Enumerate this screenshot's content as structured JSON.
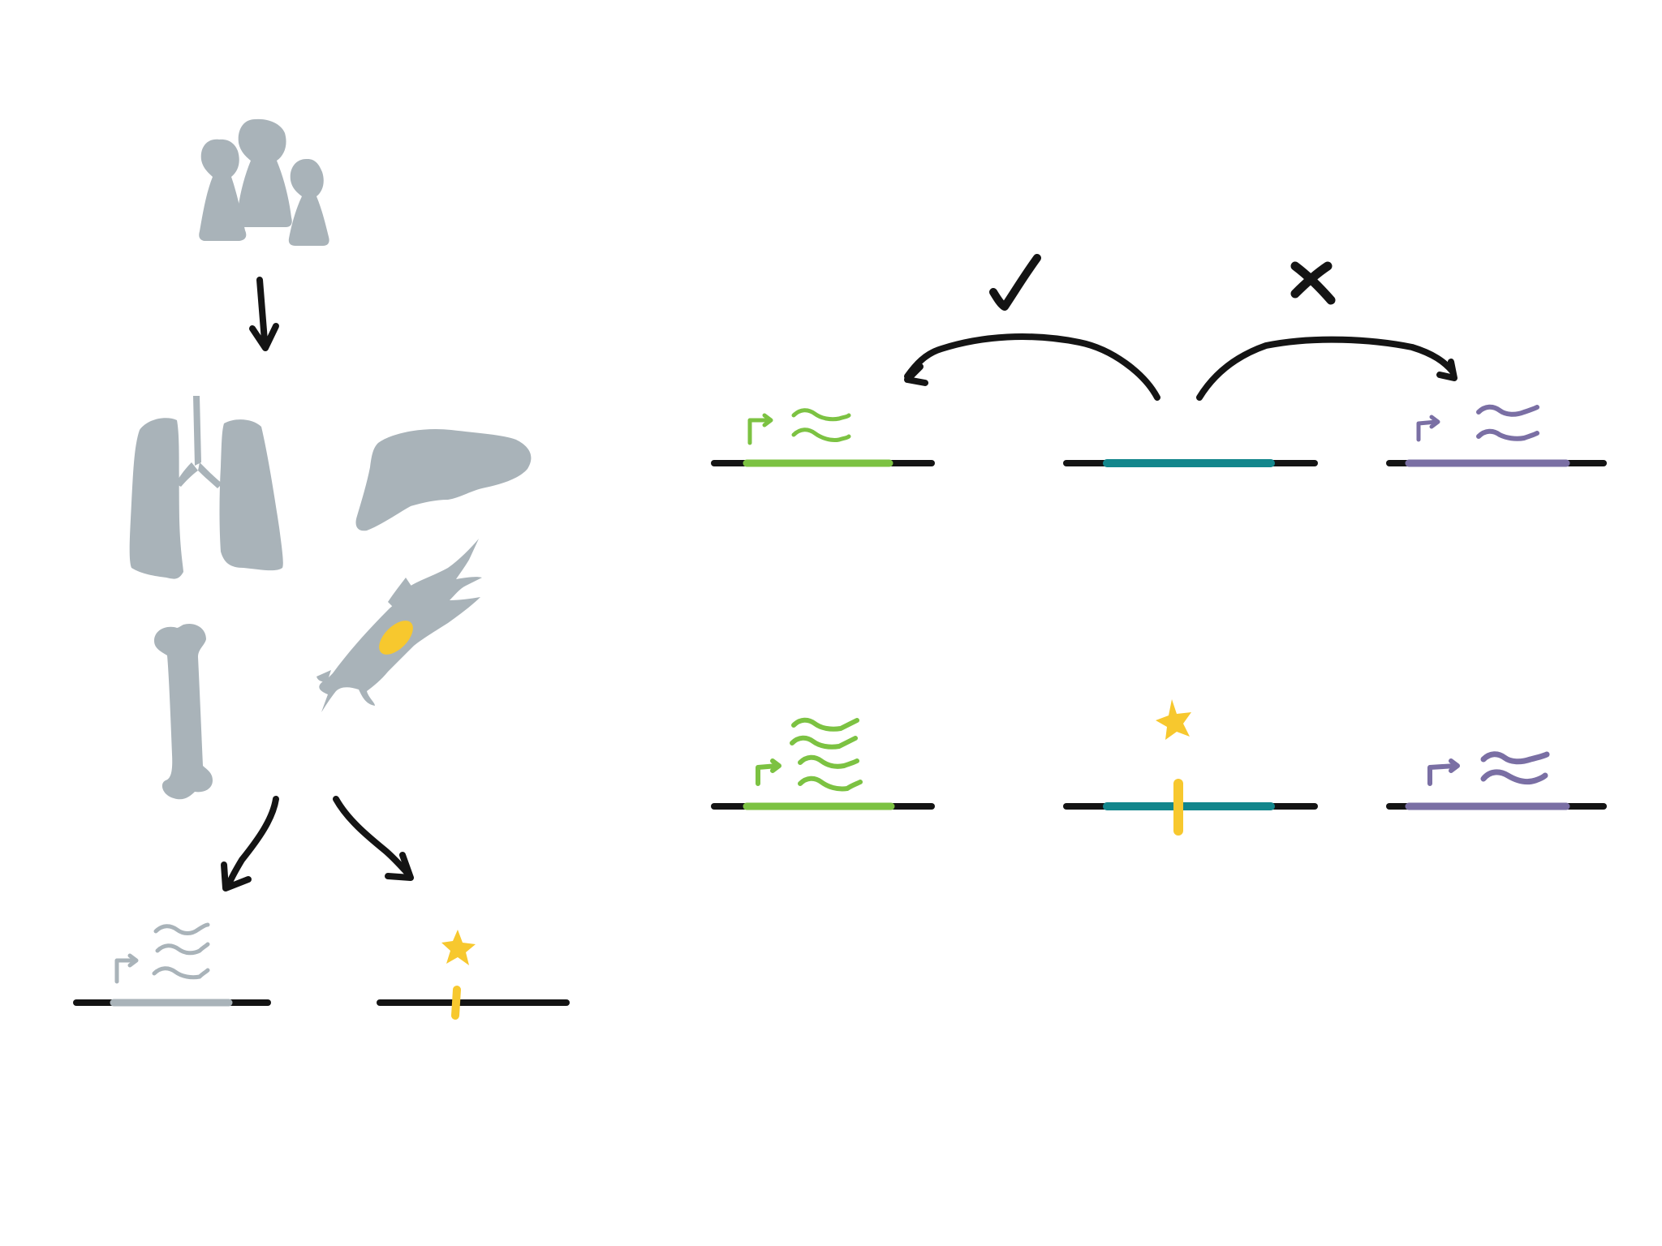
{
  "colors": {
    "ink": "#141414",
    "tissue_gray": "#a9b3b9",
    "green": "#7cc242",
    "teal": "#12868c",
    "purple": "#7a6fa4",
    "yellow": "#f7c82e"
  },
  "icons": {
    "people": "people-icon",
    "lungs": "lungs-icon",
    "liver": "liver-icon",
    "bone": "bone-icon",
    "cell": "cell-icon",
    "variant": "variant-star-icon",
    "promoter": "promoter-arrow-icon",
    "transcripts": "transcript-waves-icon",
    "check": "check-mark-icon",
    "cross": "cross-mark-icon"
  },
  "symbols": {
    "check": "✓",
    "cross": "✗"
  },
  "diagram": {
    "left_panel": [
      "population",
      "tissues",
      "expression",
      "variant"
    ],
    "right_panel": {
      "top_row": [
        "gene-green-expressed",
        "element-teal",
        "gene-purple"
      ],
      "bottom_row": [
        "gene-green-increased",
        "element-teal-variant",
        "gene-purple-unchanged"
      ]
    }
  }
}
